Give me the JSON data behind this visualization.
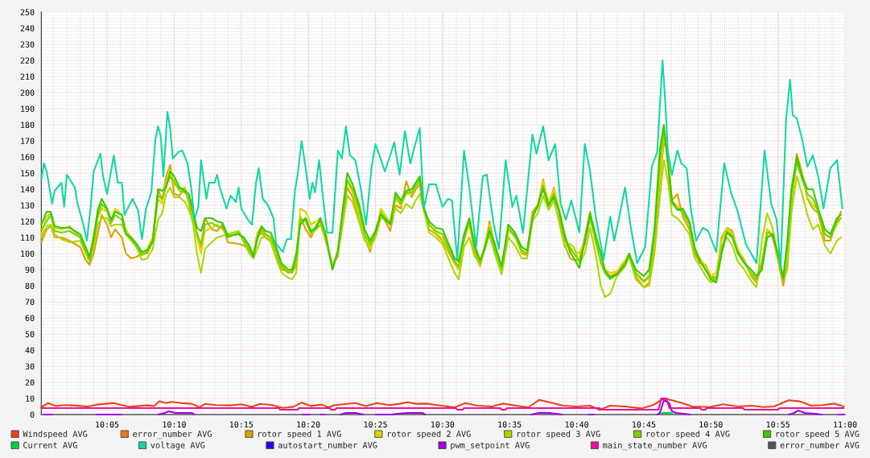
{
  "chart_data": {
    "type": "line",
    "xlim": [
      10.0017,
      11.0
    ],
    "ylim": [
      0,
      250
    ],
    "xticks": [
      {
        "value": 10.0833,
        "label": "10:05"
      },
      {
        "value": 10.1667,
        "label": "10:10"
      },
      {
        "value": 10.25,
        "label": "10:15"
      },
      {
        "value": 10.3333,
        "label": "10:20"
      },
      {
        "value": 10.4167,
        "label": "10:25"
      },
      {
        "value": 10.5,
        "label": "10:30"
      },
      {
        "value": 10.5833,
        "label": "10:35"
      },
      {
        "value": 10.6667,
        "label": "10:40"
      },
      {
        "value": 10.75,
        "label": "10:45"
      },
      {
        "value": 10.8333,
        "label": "10:50"
      },
      {
        "value": 10.9167,
        "label": "10:55"
      },
      {
        "value": 11.0,
        "label": "11:00"
      }
    ],
    "yticks": [
      0,
      10,
      20,
      30,
      40,
      50,
      60,
      70,
      80,
      90,
      100,
      110,
      120,
      130,
      140,
      150,
      160,
      170,
      180,
      190,
      200,
      210,
      220,
      230,
      240,
      250
    ],
    "grid": true,
    "legend": "bottom",
    "line_style": "solid",
    "x": [
      10.0017,
      10.0083,
      10.0133,
      10.0183,
      10.0267,
      10.0367,
      10.05,
      10.0567,
      10.0617,
      10.0667,
      10.0717,
      10.0767,
      10.0833,
      10.0883,
      10.0933,
      10.1017,
      10.1067,
      10.1133,
      10.12,
      10.1267,
      10.1333,
      10.14,
      10.1467,
      10.1517,
      10.1567,
      10.1617,
      10.1667,
      10.1733,
      10.18,
      10.185,
      10.19,
      10.195,
      10.2,
      10.205,
      10.2133,
      10.22,
      10.2267,
      10.2333,
      10.2467,
      10.2533,
      10.26,
      10.265,
      10.27,
      10.275,
      10.28,
      10.2867,
      10.2933,
      10.3,
      10.3083,
      10.3133,
      10.3183,
      10.3233,
      10.33,
      10.3367,
      10.3433,
      10.3483,
      10.355,
      10.3633,
      10.37,
      10.3767,
      10.3817,
      10.3883,
      10.3967,
      10.4033,
      10.41,
      10.4167,
      10.4233,
      10.435,
      10.4417,
      10.4483,
      10.455,
      10.4617,
      10.4667,
      10.4717,
      10.4767,
      10.4833,
      10.4917,
      10.5,
      10.515,
      10.52,
      10.5267,
      10.5333,
      10.54,
      10.5467,
      10.5533,
      10.5583,
      10.565,
      10.5733,
      10.5817,
      10.59,
      10.5983,
      10.605,
      10.6117,
      10.6183,
      10.625,
      10.6317,
      10.6383,
      10.645,
      10.6517,
      10.6583,
      10.6633,
      10.67,
      10.6767,
      10.6833,
      10.69,
      10.6967,
      10.7017,
      10.7083,
      10.7167,
      10.7267,
      10.7317,
      10.74,
      10.75,
      10.7567,
      10.7633,
      10.77,
      10.775,
      10.78,
      10.785,
      10.7917,
      10.7983,
      10.8067,
      10.8133,
      10.82,
      10.8267,
      10.8333,
      10.84,
      10.8467,
      10.8533,
      10.86,
      10.8667,
      10.875,
      10.8833,
      10.89,
      10.8967,
      10.9033,
      10.91,
      10.9167,
      10.9233,
      10.9283,
      10.9333,
      10.94,
      10.9467,
      10.9533,
      10.96,
      10.9667,
      10.975,
      10.9817,
      10.99,
      10.995
    ],
    "series": [
      {
        "name": "Windspeed AVG",
        "color": "#e8431a",
        "x": [
          10.0017,
          10.01,
          10.02,
          10.03,
          10.04,
          10.05,
          10.06,
          10.0717,
          10.0817,
          10.0917,
          10.1017,
          10.1117,
          10.1233,
          10.1333,
          10.1417,
          10.1483,
          10.1567,
          10.1633,
          10.175,
          10.1883,
          10.1983,
          10.205,
          10.2183,
          10.2367,
          10.25,
          10.2633,
          10.2733,
          10.2883,
          10.3017,
          10.315,
          10.325,
          10.3367,
          10.35,
          10.3583,
          10.3667,
          10.3817,
          10.3917,
          10.405,
          10.4183,
          10.4333,
          10.4467,
          10.4567,
          10.4667,
          10.48,
          10.4983,
          10.515,
          10.5283,
          10.5433,
          10.5617,
          10.575,
          10.5933,
          10.6067,
          10.62,
          10.6317,
          10.65,
          10.6667,
          10.6833,
          10.695,
          10.7083,
          10.7267,
          10.7467,
          10.7617,
          10.775,
          10.7867,
          10.8,
          10.81,
          10.8317,
          10.8483,
          10.8667,
          10.885,
          10.8983,
          10.9117,
          10.93,
          10.9433,
          10.9583,
          10.9717,
          10.9867,
          10.9983
        ],
        "values": [
          4.5,
          7.1,
          5.3,
          5.9,
          5.7,
          5.3,
          5.0,
          6.2,
          6.7,
          7.1,
          5.9,
          4.8,
          5.3,
          5.7,
          5.3,
          8.3,
          7.1,
          7.9,
          7.1,
          6.7,
          4.5,
          6.6,
          5.9,
          5.7,
          6.4,
          4.8,
          6.6,
          5.9,
          4.1,
          4.8,
          7.4,
          5.3,
          6.2,
          4.5,
          5.9,
          6.6,
          7.1,
          5.3,
          7.1,
          5.9,
          6.7,
          7.6,
          6.7,
          6.8,
          5.5,
          4.5,
          7.1,
          5.5,
          5.0,
          6.8,
          5.4,
          4.5,
          9.1,
          7.7,
          5.5,
          5.0,
          5.5,
          2.9,
          5.5,
          5.0,
          3.8,
          5.9,
          10,
          8.6,
          6.8,
          5.0,
          4.6,
          6.4,
          5.0,
          5.5,
          4.6,
          5.0,
          8.9,
          8.2,
          5.5,
          5.9,
          6.8,
          5.0
        ]
      },
      {
        "name": "error_number AVG",
        "color": "#e8781c",
        "values": [
          null,
          null,
          null,
          null,
          null,
          null,
          null,
          null,
          null,
          null,
          null,
          null,
          null,
          null,
          null,
          null,
          null,
          null,
          null,
          null,
          null,
          null,
          null,
          null,
          null,
          null,
          null,
          null,
          null,
          null,
          null,
          null,
          null,
          null,
          null,
          null,
          null,
          null,
          null,
          null,
          null,
          null,
          null,
          null,
          null,
          null,
          null,
          null,
          null,
          null,
          null,
          null,
          null,
          null,
          null,
          null,
          null,
          null,
          null,
          null,
          null,
          null,
          null,
          null,
          null,
          null,
          null,
          null,
          null,
          null,
          null,
          null,
          null,
          null,
          null,
          null,
          null,
          null,
          null,
          null,
          null,
          null,
          null,
          null,
          null,
          null,
          null,
          null,
          null,
          null,
          null,
          null,
          null,
          null,
          null,
          null,
          null,
          null,
          null,
          null,
          null,
          null,
          null,
          null,
          null,
          null,
          null,
          null,
          null,
          null,
          null,
          null,
          null,
          null,
          null,
          null,
          null,
          null,
          null,
          null,
          null,
          null,
          null,
          null,
          null,
          null,
          null,
          null,
          null,
          null,
          null,
          null,
          null,
          null,
          null,
          null,
          null,
          null,
          null,
          null,
          null,
          null,
          null,
          null,
          null,
          null,
          null,
          null,
          null,
          null
        ]
      },
      {
        "name": "rotor speed 1 AVG",
        "color": "#dca200",
        "values": [
          107,
          115,
          117,
          110,
          110,
          108,
          104,
          96,
          93,
          100,
          112,
          124,
          118,
          110,
          115,
          110,
          100,
          97,
          98,
          100,
          100,
          108,
          140,
          133,
          148,
          155,
          137,
          136,
          141,
          131,
          120,
          113,
          104,
          122,
          115,
          114,
          118,
          107,
          106,
          105,
          102,
          99,
          110,
          113,
          110,
          108,
          99,
          90,
          89,
          88,
          93,
          123,
          115,
          110,
          118,
          120,
          108,
          93,
          98,
          125,
          141,
          135,
          122,
          110,
          101,
          114,
          126,
          114,
          130,
          128,
          145,
          135,
          140,
          143,
          128,
          115,
          112,
          108,
          94,
          90,
          108,
          119,
          100,
          92,
          105,
          120,
          104,
          90,
          114,
          112,
          100,
          99,
          126,
          130,
          146,
          128,
          141,
          124,
          106,
          97,
          96,
          96,
          110,
          126,
          107,
          96,
          89,
          86,
          88,
          95,
          100,
          86,
          79,
          82,
          105,
          145,
          170,
          162,
          133,
          137,
          123,
          115,
          100,
          94,
          93,
          86,
          85,
          110,
          116,
          114,
          102,
          96,
          86,
          82,
          93,
          115,
          110,
          96,
          80,
          95,
          130,
          162,
          150,
          134,
          128,
          125,
          108,
          108,
          120,
          126
        ]
      },
      {
        "name": "rotor speed 2 AVG",
        "color": "#dcd600",
        "values": [
          112,
          123,
          125,
          116,
          115,
          117,
          110,
          102,
          97,
          112,
          122,
          128,
          126,
          120,
          128,
          124,
          115,
          110,
          104,
          100,
          103,
          110,
          134,
          131,
          144,
          152,
          143,
          140,
          141,
          133,
          122,
          110,
          100,
          114,
          116,
          118,
          115,
          112,
          114,
          108,
          103,
          100,
          113,
          116,
          112,
          109,
          101,
          93,
          89,
          91,
          97,
          128,
          126,
          118,
          120,
          122,
          110,
          92,
          100,
          130,
          145,
          138,
          124,
          110,
          103,
          110,
          128,
          119,
          134,
          130,
          137,
          137,
          142,
          145,
          130,
          118,
          113,
          109,
          96,
          90,
          110,
          118,
          103,
          92,
          108,
          118,
          100,
          90,
          115,
          110,
          101,
          100,
          124,
          129,
          145,
          132,
          140,
          128,
          110,
          104,
          102,
          100,
          108,
          122,
          108,
          96,
          90,
          88,
          89,
          96,
          98,
          88,
          82,
          85,
          110,
          150,
          175,
          160,
          132,
          130,
          125,
          118,
          102,
          97,
          92,
          86,
          88,
          108,
          116,
          112,
          103,
          95,
          87,
          84,
          95,
          115,
          112,
          96,
          85,
          100,
          135,
          155,
          150,
          135,
          130,
          127,
          112,
          110,
          118,
          122
        ]
      },
      {
        "name": "rotor speed 3 AVG",
        "color": "#acd800",
        "values": [
          110,
          117,
          118,
          112,
          109,
          107,
          108,
          100,
          95,
          105,
          118,
          122,
          122,
          117,
          118,
          118,
          112,
          108,
          104,
          96,
          97,
          103,
          121,
          125,
          137,
          141,
          135,
          135,
          132,
          127,
          119,
          100,
          88,
          103,
          107,
          110,
          111,
          112,
          114,
          107,
          100,
          97,
          103,
          110,
          110,
          107,
          97,
          88,
          85,
          84,
          88,
          122,
          120,
          112,
          115,
          118,
          108,
          91,
          100,
          120,
          136,
          132,
          119,
          108,
          105,
          110,
          122,
          120,
          128,
          125,
          131,
          128,
          133,
          137,
          127,
          113,
          110,
          106,
          88,
          84,
          104,
          110,
          98,
          95,
          106,
          111,
          100,
          87,
          110,
          105,
          97,
          97,
          120,
          125,
          136,
          127,
          133,
          119,
          104,
          106,
          104,
          94,
          100,
          116,
          100,
          80,
          73,
          75,
          86,
          92,
          98,
          84,
          79,
          80,
          100,
          135,
          158,
          145,
          124,
          122,
          118,
          112,
          97,
          92,
          86,
          82,
          84,
          104,
          110,
          105,
          95,
          90,
          83,
          79,
          108,
          125,
          116,
          98,
          84,
          90,
          125,
          148,
          137,
          124,
          115,
          118,
          105,
          100,
          108,
          110
        ]
      },
      {
        "name": "rotor speed 4 AVG",
        "color": "#74d400",
        "values": [
          115,
          120,
          124,
          114,
          113,
          114,
          110,
          102,
          96,
          108,
          124,
          131,
          127,
          119,
          124,
          121,
          113,
          109,
          105,
          99,
          101,
          107,
          136,
          134,
          142,
          148,
          145,
          139,
          138,
          134,
          124,
          112,
          106,
          118,
          119,
          117,
          116,
          110,
          113,
          108,
          103,
          98,
          109,
          115,
          112,
          110,
          102,
          92,
          88,
          89,
          96,
          121,
          121,
          113,
          117,
          121,
          110,
          91,
          101,
          127,
          146,
          140,
          127,
          112,
          106,
          112,
          125,
          119,
          136,
          131,
          138,
          138,
          142,
          146,
          128,
          118,
          114,
          112,
          95,
          92,
          110,
          120,
          103,
          94,
          105,
          116,
          103,
          91,
          116,
          111,
          102,
          100,
          123,
          129,
          142,
          130,
          137,
          126,
          109,
          103,
          100,
          95,
          106,
          122,
          109,
          94,
          88,
          84,
          87,
          94,
          99,
          88,
          83,
          86,
          112,
          158,
          177,
          156,
          131,
          128,
          126,
          118,
          102,
          95,
          90,
          85,
          84,
          103,
          114,
          111,
          101,
          94,
          88,
          84,
          94,
          113,
          112,
          98,
          84,
          104,
          137,
          157,
          146,
          137,
          134,
          126,
          112,
          110,
          120,
          122
        ]
      },
      {
        "name": "rotor speed 5 AVG",
        "color": "#3cc800",
        "values": [
          118,
          126,
          126,
          117,
          116,
          116,
          112,
          104,
          98,
          110,
          127,
          134,
          128,
          121,
          126,
          124,
          112,
          110,
          106,
          101,
          102,
          108,
          140,
          139,
          141,
          151,
          148,
          141,
          139,
          137,
          127,
          116,
          114,
          122,
          122,
          120,
          119,
          111,
          112,
          110,
          105,
          98,
          110,
          117,
          114,
          113,
          104,
          94,
          90,
          90,
          100,
          118,
          122,
          114,
          116,
          122,
          112,
          90,
          102,
          130,
          150,
          143,
          130,
          115,
          108,
          114,
          124,
          118,
          138,
          133,
          139,
          140,
          144,
          148,
          128,
          120,
          116,
          115,
          97,
          95,
          112,
          122,
          105,
          96,
          104,
          114,
          106,
          92,
          118,
          113,
          104,
          102,
          122,
          130,
          140,
          130,
          135,
          126,
          112,
          101,
          97,
          91,
          108,
          125,
          112,
          100,
          90,
          85,
          87,
          93,
          100,
          90,
          86,
          90,
          115,
          165,
          180,
          155,
          133,
          127,
          128,
          120,
          104,
          95,
          90,
          84,
          82,
          100,
          113,
          110,
          100,
          94,
          90,
          86,
          90,
          110,
          112,
          100,
          85,
          108,
          140,
          160,
          148,
          140,
          140,
          128,
          115,
          112,
          122,
          124
        ]
      },
      {
        "name": "Current AVG",
        "color": "#00d044",
        "x": [
          10.77,
          10.7733,
          10.7833,
          10.7867
        ],
        "values": [
          0,
          1,
          1,
          0
        ]
      },
      {
        "name": "voltage AVG",
        "color": "#10d8a4",
        "x": [
          10.0017,
          10.005,
          10.0083,
          10.015,
          10.0183,
          10.0267,
          10.03,
          10.0333,
          10.0433,
          10.0467,
          10.0533,
          10.0583,
          10.0633,
          10.0667,
          10.075,
          10.0783,
          10.0833,
          10.0917,
          10.0967,
          10.1017,
          10.105,
          10.11,
          10.115,
          10.1217,
          10.1267,
          10.1317,
          10.1383,
          10.1433,
          10.1467,
          10.15,
          10.1533,
          10.1583,
          10.1617,
          10.165,
          10.1717,
          10.1767,
          10.1833,
          10.1883,
          10.1917,
          10.1967,
          10.2,
          10.2067,
          10.21,
          10.2167,
          10.22,
          10.2233,
          10.2317,
          10.2367,
          10.2433,
          10.2467,
          10.25,
          10.2583,
          10.2633,
          10.2683,
          10.2717,
          10.2767,
          10.2833,
          10.29,
          10.2933,
          10.3017,
          10.3067,
          10.3117,
          10.3167,
          10.32,
          10.325,
          10.33,
          10.335,
          10.3383,
          10.3417,
          10.3467,
          10.3517,
          10.3567,
          10.3633,
          10.37,
          10.375,
          10.38,
          10.385,
          10.3917,
          10.3983,
          10.405,
          10.4117,
          10.4167,
          10.4217,
          10.4283,
          10.435,
          10.44,
          10.4467,
          10.4533,
          10.46,
          10.4667,
          10.4717,
          10.4767,
          10.4833,
          10.4917,
          10.5,
          10.5067,
          10.5117,
          10.5183,
          10.5267,
          10.5333,
          10.5417,
          10.55,
          10.555,
          10.5633,
          10.57,
          10.5783,
          10.5867,
          10.5917,
          10.6,
          10.6117,
          10.6167,
          10.625,
          10.6317,
          10.64,
          10.6467,
          10.6533,
          10.66,
          10.67,
          10.6767,
          10.6833,
          10.69,
          10.7,
          10.7083,
          10.7133,
          10.72,
          10.7267,
          10.7333,
          10.7417,
          10.7517,
          10.76,
          10.7667,
          10.7733,
          10.7767,
          10.78,
          10.785,
          10.7917,
          10.7967,
          10.8033,
          10.8083,
          10.815,
          10.8233,
          10.83,
          10.84,
          10.85,
          10.8583,
          10.8667,
          10.8767,
          10.89,
          10.9,
          10.9083,
          10.915,
          10.92,
          10.9267,
          10.9317,
          10.935,
          10.94,
          10.9467,
          10.9533,
          10.96,
          10.9667,
          10.9733,
          10.9817,
          10.99,
          10.9967
        ],
        "values": [
          146,
          156,
          151,
          131,
          139,
          144,
          129,
          149,
          141,
          131,
          119,
          108,
          131,
          151,
          162,
          148,
          137,
          161,
          144,
          144,
          124,
          129,
          134,
          127,
          109,
          128,
          138,
          171,
          179,
          173,
          148,
          188,
          178,
          159,
          163,
          164,
          156,
          139,
          121,
          129,
          158,
          134,
          144,
          144,
          149,
          141,
          128,
          136,
          132,
          141,
          128,
          121,
          118,
          144,
          153,
          134,
          130,
          122,
          106,
          101,
          109,
          109,
          139,
          149,
          170,
          153,
          134,
          144,
          138,
          158,
          134,
          113,
          113,
          164,
          159,
          179,
          161,
          158,
          141,
          118,
          153,
          168,
          161,
          151,
          161,
          169,
          149,
          176,
          156,
          169,
          178,
          128,
          143,
          143,
          129,
          134,
          133,
          96,
          164,
          141,
          104,
          148,
          149,
          119,
          103,
          158,
          129,
          136,
          113,
          174,
          162,
          179,
          158,
          168,
          131,
          121,
          133,
          113,
          168,
          151,
          124,
          96,
          123,
          108,
          124,
          141,
          118,
          94,
          104,
          154,
          163,
          220,
          194,
          163,
          149,
          164,
          156,
          153,
          128,
          108,
          116,
          114,
          101,
          156,
          138,
          126,
          106,
          94,
          164,
          131,
          121,
          91,
          183,
          208,
          186,
          184,
          171,
          154,
          161,
          148,
          128,
          153,
          158,
          128
        ]
      },
      {
        "name": "autostart_number AVG",
        "color": "#2a00ec",
        "values": [
          null,
          null,
          null,
          null,
          null,
          null,
          null,
          null,
          null,
          null,
          null,
          null,
          null,
          null,
          null,
          null,
          null,
          null,
          null,
          null,
          null,
          null,
          null,
          null,
          null,
          null,
          null,
          null,
          null,
          null,
          null,
          null,
          null,
          null,
          null,
          null,
          null,
          null,
          null,
          null,
          null,
          null,
          null,
          null,
          null,
          null,
          null,
          null,
          null,
          null,
          null,
          null,
          null,
          null,
          null,
          null,
          null,
          null,
          null,
          null,
          null,
          null,
          null,
          null,
          null,
          null,
          null,
          null,
          null,
          null,
          null,
          null,
          null,
          null,
          null,
          null,
          null,
          null,
          null,
          null,
          null,
          null,
          null,
          null,
          null,
          null,
          null,
          null,
          null,
          null,
          null,
          null,
          null,
          null,
          null,
          null,
          null,
          null,
          null,
          null,
          null,
          null,
          null,
          null,
          null,
          null,
          null,
          null,
          null,
          null,
          null,
          null,
          null,
          null,
          null,
          null,
          null,
          null,
          null,
          null,
          null,
          null,
          null,
          null,
          null,
          null,
          null,
          null,
          null,
          null,
          null,
          null,
          null,
          null,
          null,
          null,
          null,
          null,
          null,
          null,
          null,
          null,
          null,
          null,
          null,
          null,
          null,
          null,
          null,
          null
        ]
      },
      {
        "name": "pwm_setpoint AVG",
        "color": "#a000ec",
        "x": [
          10.005,
          10.015,
          10.0417,
          10.07,
          10.1017,
          10.125,
          10.1467,
          10.155,
          10.16,
          10.1683,
          10.1883,
          10.1917,
          10.25,
          10.3267,
          10.335,
          10.3417,
          10.3483,
          10.3533,
          10.3633,
          10.3733,
          10.38,
          10.3917,
          10.4017,
          10.4083,
          10.4167,
          10.4367,
          10.4433,
          10.4567,
          10.475,
          10.4783,
          10.5333,
          10.61,
          10.62,
          10.6333,
          10.6483,
          10.6667,
          10.6817,
          10.6883,
          10.7167,
          10.7667,
          10.77,
          10.775,
          10.7817,
          10.785,
          10.79,
          10.8083,
          10.8667,
          10.93,
          10.9367,
          10.9417,
          10.95,
          10.9717,
          10.9833,
          10.9917,
          10.9983
        ],
        "values": [
          0,
          0,
          null,
          0,
          0,
          null,
          0,
          1,
          2,
          1,
          1,
          0,
          null,
          0,
          0,
          null,
          0,
          0,
          null,
          0,
          1,
          1,
          0,
          null,
          0,
          0,
          0.5,
          1,
          1,
          0,
          null,
          0,
          1,
          1,
          0,
          null,
          0,
          0,
          null,
          0,
          1,
          9,
          7,
          2,
          1,
          0,
          null,
          0,
          1,
          2.5,
          1,
          0,
          null,
          0,
          0
        ]
      },
      {
        "name": "main_state_number AVG",
        "color": "#ec109c",
        "x": [
          10.0017,
          10.2967,
          10.2983,
          10.32,
          10.3217,
          10.36,
          10.3617,
          10.3667,
          10.3683,
          10.5167,
          10.5183,
          10.525,
          10.5267,
          10.5717,
          10.5733,
          10.5783,
          10.58,
          10.695,
          10.6967,
          10.7683,
          10.7717,
          10.7783,
          10.7817,
          10.82,
          10.8217,
          10.8267,
          10.8283,
          10.8733,
          10.875,
          10.9167,
          10.9183,
          10.9983
        ],
        "values": [
          4,
          4,
          3,
          3,
          4,
          4,
          3,
          3,
          4,
          4,
          3,
          3,
          4,
          4,
          3,
          3,
          4,
          4,
          3,
          3,
          10,
          10,
          4,
          4,
          3,
          3,
          4,
          4,
          3,
          3,
          4,
          4
        ]
      },
      {
        "name": "error_number AVG",
        "color": "#555555",
        "values": [
          null,
          null,
          null,
          null,
          null,
          null,
          null,
          null,
          null,
          null,
          null,
          null,
          null,
          null,
          null,
          null,
          null,
          null,
          null,
          null,
          null,
          null,
          null,
          null,
          null,
          null,
          null,
          null,
          null,
          null,
          null,
          null,
          null,
          null,
          null,
          null,
          null,
          null,
          null,
          null,
          null,
          null,
          null,
          null,
          null,
          null,
          null,
          null,
          null,
          null,
          null,
          null,
          null,
          null,
          null,
          null,
          null,
          null,
          null,
          null,
          null,
          null,
          null,
          null,
          null,
          null,
          null,
          null,
          null,
          null,
          null,
          null,
          null,
          null,
          null,
          null,
          null,
          null,
          null,
          null,
          null,
          null,
          null,
          null,
          null,
          null,
          null,
          null,
          null,
          null,
          null,
          null,
          null,
          null,
          null,
          null,
          null,
          null,
          null,
          null,
          null,
          null,
          null,
          null,
          null,
          null,
          null,
          null,
          null,
          null,
          null,
          null,
          null,
          null,
          null,
          null,
          null,
          null,
          null,
          null,
          null,
          null,
          null,
          null,
          null,
          null,
          null,
          null,
          null,
          null,
          null,
          null,
          null,
          null,
          null,
          null,
          null,
          null,
          null,
          null,
          null,
          null,
          null,
          null,
          null,
          null,
          null,
          null,
          null,
          null
        ]
      }
    ]
  }
}
